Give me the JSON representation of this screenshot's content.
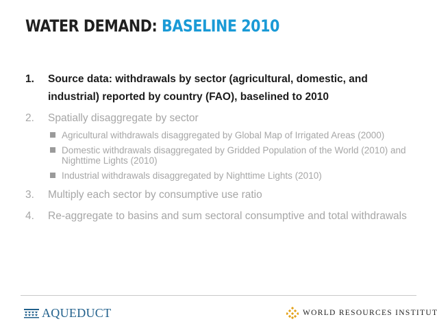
{
  "header": {
    "title_part1": "WATER DEMAND:",
    "title_part2": "BASELINE 2010"
  },
  "steps": [
    {
      "number": "1.",
      "text": "Source data: withdrawals by sector (agricultural, domestic, and industrial) reported by country (FAO), baselined to 2010"
    },
    {
      "number": "2.",
      "text": "Spatially disaggregate by sector",
      "subitems": [
        "Agricultural withdrawals disaggregated by Global Map of Irrigated Areas (2000)",
        "Domestic withdrawals disaggregated by Gridded Population of the World (2010) and Nighttime Lights (2010)",
        "Industrial withdrawals disaggregated by Nighttime Lights (2010)"
      ]
    },
    {
      "number": "3.",
      "text": "Multiply each sector by consumptive use ratio"
    },
    {
      "number": "4.",
      "text": "Re-aggregate to basins and sum sectoral consumptive and total withdrawals"
    }
  ],
  "footer": {
    "left_logo_text": "AQUEDUCT",
    "right_logo_text": "WORLD RESOURCES INSTITUTE",
    "left_logo_icon": "aqueduct-icon",
    "right_logo_icon": "wri-diamond-icon"
  },
  "colors": {
    "title_dark": "#1f1f1f",
    "title_accent": "#1a9ad6",
    "muted_text": "#a6a6a6",
    "aqueduct_blue": "#1f5f8b",
    "wri_gold": "#e3a21a"
  }
}
